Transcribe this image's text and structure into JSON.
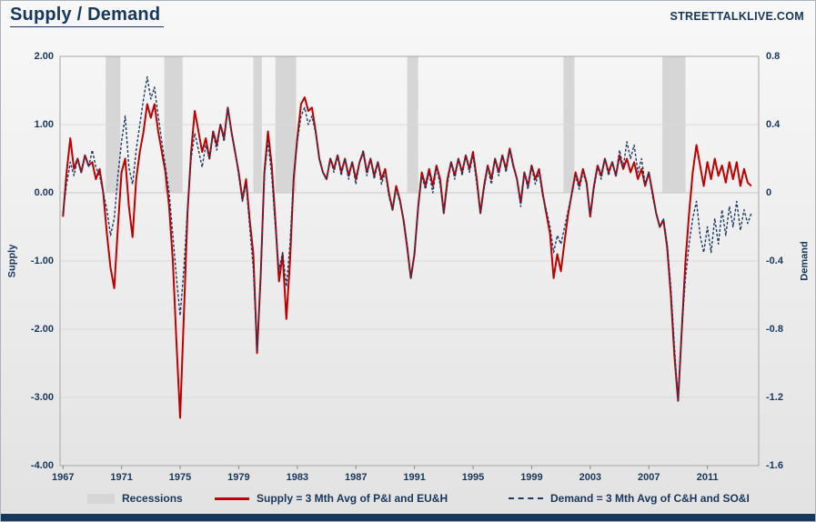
{
  "header": {
    "title": "Supply / Demand",
    "brand": "STREETTALKLIVE.COM"
  },
  "chart_data": {
    "type": "line",
    "title": "Supply / Demand",
    "grid": "horizontal",
    "legend_position": "bottom",
    "x_start": 1967.0,
    "x_step": 0.25,
    "x_axis": {
      "min": 1966.8,
      "max": 2014.5,
      "ticks": [
        "1967",
        "1971",
        "1975",
        "1979",
        "1983",
        "1987",
        "1991",
        "1995",
        "1999",
        "2003",
        "2007",
        "2011"
      ],
      "tick_values": [
        1967,
        1971,
        1975,
        1979,
        1983,
        1987,
        1991,
        1995,
        1999,
        2003,
        2007,
        2011
      ]
    },
    "y_left": {
      "label": "Supply",
      "min": -4,
      "max": 2,
      "ticks": [
        "2.00",
        "1.00",
        "0.00",
        "-1.00",
        "-2.00",
        "-3.00",
        "-4.00"
      ],
      "tick_values": [
        2,
        1,
        0,
        -1,
        -2,
        -3,
        -4
      ]
    },
    "y_right": {
      "label": "Demand",
      "min": -1.6,
      "max": 0.8,
      "ticks": [
        "0.8",
        "0.4",
        "0",
        "-0.4",
        "-0.8",
        "-1.2",
        "-1.6"
      ],
      "tick_values": [
        0.8,
        0.4,
        0,
        -0.4,
        -0.8,
        -1.2,
        -1.6
      ]
    },
    "colors": {
      "supply": "#c00000",
      "demand": "#1f3a67",
      "recession": "#d6d6d6",
      "text": "#17375d",
      "gridline": "#d9d9d9",
      "plot_border": "#a6a6a6"
    },
    "recession_band": {
      "axis": "left",
      "from_value": 0,
      "to_value": 2
    },
    "recessions": [
      [
        1969.92,
        1970.92
      ],
      [
        1973.92,
        1975.17
      ],
      [
        1980.0,
        1980.58
      ],
      [
        1981.5,
        1982.92
      ],
      [
        1990.5,
        1991.25
      ],
      [
        2001.17,
        2001.92
      ],
      [
        2007.92,
        2009.5
      ]
    ],
    "legend": {
      "recessions": "Recessions"
    },
    "series": [
      {
        "name": "Supply = 3 Mth Avg of P&I and EU&H",
        "axis": "left",
        "color": "#c00000",
        "line_style": "solid",
        "values": [
          -0.35,
          0.3,
          0.8,
          0.35,
          0.5,
          0.3,
          0.55,
          0.4,
          0.45,
          0.2,
          0.35,
          0.0,
          -0.6,
          -1.1,
          -1.4,
          -0.5,
          0.3,
          0.5,
          -0.2,
          -0.65,
          0.2,
          0.6,
          0.9,
          1.3,
          1.1,
          1.3,
          0.9,
          0.6,
          0.3,
          -0.2,
          -1.0,
          -2.2,
          -3.3,
          -1.8,
          -0.3,
          0.6,
          1.2,
          0.9,
          0.6,
          0.8,
          0.5,
          0.9,
          0.7,
          1.0,
          0.8,
          1.25,
          0.9,
          0.6,
          0.3,
          -0.1,
          0.2,
          -0.4,
          -0.9,
          -2.35,
          -1.2,
          0.3,
          0.9,
          0.4,
          -0.4,
          -1.3,
          -0.9,
          -1.85,
          -1.0,
          0.2,
          0.8,
          1.3,
          1.4,
          1.2,
          1.25,
          0.9,
          0.5,
          0.3,
          0.2,
          0.5,
          0.35,
          0.55,
          0.3,
          0.5,
          0.25,
          0.45,
          0.2,
          0.45,
          0.6,
          0.3,
          0.5,
          0.25,
          0.45,
          0.2,
          0.35,
          0.0,
          -0.25,
          0.1,
          -0.1,
          -0.4,
          -0.8,
          -1.25,
          -0.9,
          -0.2,
          0.3,
          0.1,
          0.35,
          0.1,
          0.4,
          0.2,
          -0.3,
          0.2,
          0.45,
          0.25,
          0.5,
          0.3,
          0.55,
          0.35,
          0.6,
          0.2,
          -0.3,
          0.1,
          0.4,
          0.2,
          0.5,
          0.3,
          0.55,
          0.35,
          0.65,
          0.4,
          0.2,
          -0.15,
          0.3,
          0.1,
          0.4,
          0.2,
          0.35,
          0.0,
          -0.3,
          -0.6,
          -1.25,
          -0.9,
          -1.15,
          -0.7,
          -0.3,
          0.0,
          0.3,
          0.1,
          0.35,
          0.15,
          -0.35,
          0.1,
          0.4,
          0.25,
          0.5,
          0.3,
          0.45,
          0.25,
          0.55,
          0.35,
          0.5,
          0.3,
          0.45,
          0.2,
          0.35,
          0.1,
          0.3,
          0.0,
          -0.3,
          -0.5,
          -0.4,
          -0.8,
          -1.5,
          -2.4,
          -3.05,
          -2.0,
          -1.0,
          -0.3,
          0.3,
          0.7,
          0.4,
          0.1,
          0.45,
          0.2,
          0.5,
          0.25,
          0.4,
          0.15,
          0.45,
          0.2,
          0.45,
          0.1,
          0.35,
          0.15,
          0.1
        ]
      },
      {
        "name": "Demand = 3 Mth Avg of C&H and SO&I",
        "axis": "right",
        "color": "#1f3a67",
        "line_style": "dashed",
        "values": [
          -0.12,
          0.05,
          0.18,
          0.1,
          0.2,
          0.12,
          0.22,
          0.15,
          0.25,
          0.15,
          0.1,
          0.0,
          -0.1,
          -0.25,
          -0.15,
          0.1,
          0.3,
          0.45,
          0.15,
          0.05,
          0.25,
          0.4,
          0.55,
          0.68,
          0.55,
          0.62,
          0.45,
          0.3,
          0.15,
          0.0,
          -0.25,
          -0.5,
          -0.72,
          -0.45,
          -0.1,
          0.2,
          0.35,
          0.25,
          0.15,
          0.28,
          0.2,
          0.35,
          0.25,
          0.4,
          0.3,
          0.5,
          0.35,
          0.25,
          0.1,
          -0.05,
          0.05,
          -0.2,
          -0.45,
          -0.92,
          -0.5,
          0.1,
          0.3,
          0.1,
          -0.2,
          -0.45,
          -0.35,
          -0.55,
          -0.3,
          0.1,
          0.3,
          0.45,
          0.5,
          0.4,
          0.45,
          0.35,
          0.2,
          0.12,
          0.08,
          0.2,
          0.12,
          0.22,
          0.1,
          0.2,
          0.08,
          0.18,
          0.05,
          0.18,
          0.25,
          0.1,
          0.2,
          0.08,
          0.18,
          0.05,
          0.12,
          -0.02,
          -0.1,
          0.02,
          -0.05,
          -0.15,
          -0.3,
          -0.5,
          -0.35,
          -0.1,
          0.1,
          0.02,
          0.12,
          0.0,
          0.15,
          0.05,
          -0.12,
          0.05,
          0.18,
          0.08,
          0.2,
          0.1,
          0.22,
          0.12,
          0.22,
          0.05,
          -0.12,
          0.02,
          0.15,
          0.05,
          0.2,
          0.1,
          0.22,
          0.12,
          0.25,
          0.15,
          0.08,
          -0.08,
          0.12,
          0.02,
          0.15,
          0.05,
          0.12,
          -0.02,
          -0.1,
          -0.2,
          -0.35,
          -0.25,
          -0.3,
          -0.2,
          -0.1,
          0.0,
          0.1,
          0.02,
          0.12,
          0.05,
          -0.12,
          0.02,
          0.15,
          0.08,
          0.2,
          0.1,
          0.18,
          0.1,
          0.25,
          0.15,
          0.3,
          0.2,
          0.28,
          0.12,
          0.2,
          0.05,
          0.12,
          -0.02,
          -0.12,
          -0.2,
          -0.15,
          -0.3,
          -0.55,
          -0.9,
          -1.22,
          -0.8,
          -0.5,
          -0.3,
          -0.15,
          -0.05,
          -0.25,
          -0.35,
          -0.2,
          -0.35,
          -0.15,
          -0.3,
          -0.1,
          -0.25,
          -0.08,
          -0.2,
          -0.05,
          -0.22,
          -0.1,
          -0.18,
          -0.12
        ]
      }
    ]
  }
}
